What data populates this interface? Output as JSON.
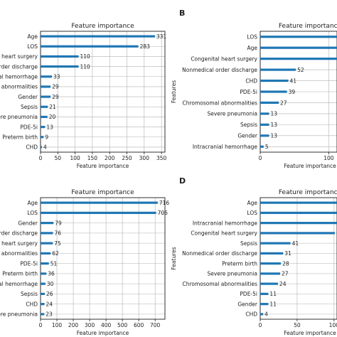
{
  "chart_data": [
    {
      "panel": "",
      "type": "bar",
      "orientation": "horizontal",
      "title": "Feature importance",
      "xlabel": "Feature importance",
      "ylabel": "",
      "xlim": [
        0,
        360
      ],
      "xticks": [
        0,
        50,
        100,
        150,
        200,
        250,
        300,
        350
      ],
      "grid": true,
      "categories": [
        "Age",
        "LOS",
        "Congenital heart surgery",
        "Nonmedical order discharge",
        "Intracranial hemorrhage",
        "Chromosomal abnormalities",
        "Gender",
        "Sepsis",
        "Severe pneumonia",
        "PDE-5i",
        "Preterm birth",
        "CHD"
      ],
      "values": [
        331,
        283,
        110,
        110,
        33,
        29,
        29,
        21,
        20,
        13,
        9,
        4
      ]
    },
    {
      "panel": "B",
      "type": "bar",
      "orientation": "horizontal",
      "title": "Feature importance",
      "xlabel": "Feature importance",
      "ylabel": "Features",
      "xlim": [
        0,
        560
      ],
      "xticks": [
        0,
        100,
        200,
        300,
        400,
        500
      ],
      "grid": true,
      "categories": [
        "LOS",
        "Age",
        "Congenital heart surgery",
        "Nonmedical order discharge",
        "CHD",
        "PDE-5i",
        "Chromosomal abnormalities",
        "Severe pneumonia",
        "Sepsis",
        "Gender",
        "Intracranial hemorrhage"
      ],
      "values": [
        560,
        545,
        138,
        52,
        41,
        39,
        27,
        13,
        13,
        13,
        5
      ]
    },
    {
      "panel": "",
      "type": "bar",
      "orientation": "horizontal",
      "title": "Feature importance",
      "xlabel": "Feature importance",
      "ylabel": "",
      "xlim": [
        0,
        760
      ],
      "xticks": [
        0,
        100,
        200,
        300,
        400,
        500,
        600,
        700
      ],
      "grid": true,
      "categories": [
        "Age",
        "LOS",
        "Gender",
        "Nonmedical order discharge",
        "Congenital heart surgery",
        "Chromosomal abnormalities",
        "PDE-5i",
        "Preterm birth",
        "Intracranial hemorrhage",
        "Sepsis",
        "CHD",
        "Severe pneumonia"
      ],
      "values": [
        716,
        706,
        79,
        76,
        75,
        62,
        51,
        36,
        30,
        26,
        24,
        23
      ]
    },
    {
      "panel": "D",
      "type": "bar",
      "orientation": "horizontal",
      "title": "Feature importance",
      "xlabel": "Feature importance",
      "ylabel": "Features",
      "xlim": [
        0,
        260
      ],
      "xticks": [
        0,
        50,
        100,
        150,
        200,
        250
      ],
      "grid": true,
      "categories": [
        "Age",
        "LOS",
        "Intracranial hemorrhage",
        "Congenital heart surgery",
        "Sepsis",
        "Nonmedical order discharge",
        "Preterm birth",
        "Severe pneumonia",
        "Chromosomal abnormalities",
        "PDE-5i",
        "Gender",
        "CHD"
      ],
      "values": [
        260,
        255,
        121,
        101,
        41,
        31,
        28,
        27,
        24,
        11,
        11,
        4
      ]
    }
  ],
  "colors": {
    "bar": "#1f77b4",
    "grid": "#b0b0b0",
    "axis": "#000000"
  }
}
